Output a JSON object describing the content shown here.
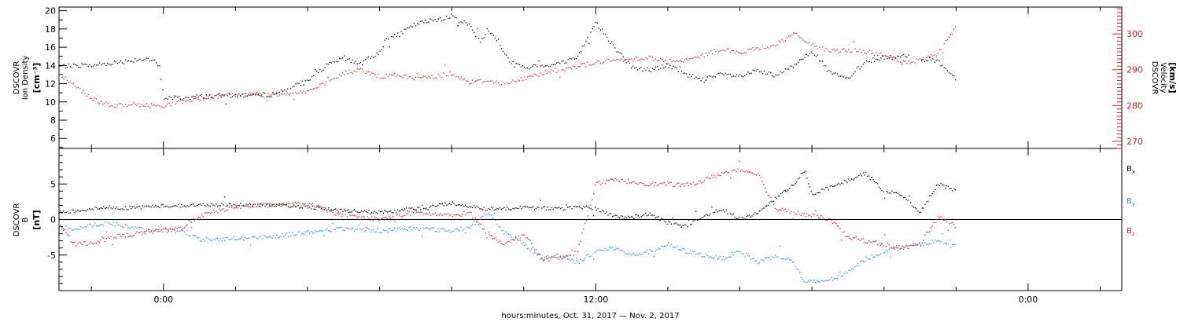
{
  "colors": {
    "black": "#000000",
    "blue": "#1f8fdf",
    "red": "#e02020"
  },
  "x_axis": {
    "title": "hours:minutes, Oct. 31, 2017 — Nov.  2, 2017",
    "tick_labels": [
      "0:00",
      "12:00",
      "0:00"
    ],
    "tick_hours": [
      0,
      12,
      24
    ],
    "range_hours": [
      -2.9,
      26.6
    ]
  },
  "panels": {
    "top": {
      "left_axis": {
        "title_lines": [
          "DSCOVR",
          "Ion Density"
        ],
        "units": "[cm⁻³]",
        "ticks": [
          6,
          8,
          10,
          12,
          14,
          16,
          18,
          20
        ],
        "range": [
          4.9,
          20.4
        ]
      },
      "right_axis": {
        "title_lines": [
          "DSCOVR",
          "Velocity"
        ],
        "units": "[km/s]",
        "ticks": [
          270,
          280,
          290,
          300
        ],
        "range": [
          268,
          307.5
        ]
      }
    },
    "bottom": {
      "left_axis": {
        "title_lines": [
          "DSCOVR",
          "B"
        ],
        "units": "[nT]",
        "ticks": [
          -5,
          0,
          5
        ],
        "range": [
          -10,
          10
        ]
      },
      "legend": [
        {
          "label": "B",
          "sub": "x",
          "color": "#000000"
        },
        {
          "label": "B",
          "sub": "y",
          "color": "#1f8fdf"
        },
        {
          "label": "B",
          "sub": "z",
          "color": "#e02020"
        }
      ]
    }
  },
  "chart_data": [
    {
      "type": "scatter",
      "title": "",
      "xlabel": "hours:minutes, Oct. 31, 2017 — Nov.  2, 2017",
      "ylabel": "DSCOVR Ion Density [cm⁻³]",
      "y2label": "DSCOVR Velocity [km/s]",
      "xlim": [
        -2.9,
        26.6
      ],
      "ylim": [
        4.9,
        20.4
      ],
      "y2lim": [
        268,
        307.5
      ],
      "series": [
        {
          "name": "",
          "axis": "left",
          "color": "#000000",
          "x": [
            -2.9,
            -2.0,
            -1.0,
            -0.5,
            -0.2,
            -0.1,
            0.0,
            0.5,
            1.0,
            2.0,
            3.0,
            3.5,
            4.0,
            4.5,
            5.0,
            5.5,
            6.0,
            6.2,
            6.5,
            7.0,
            7.5,
            8.0,
            8.5,
            8.8,
            9.0,
            9.3,
            9.6,
            10.0,
            10.5,
            11.0,
            11.5,
            12.0,
            12.5,
            13.0,
            13.5,
            14.0,
            14.5,
            15.0,
            15.5,
            16.0,
            16.5,
            17.0,
            17.5,
            18.0,
            18.5,
            19.0,
            19.5,
            20.0,
            20.5,
            21.0,
            21.5,
            22.0
          ],
          "y": [
            13.9,
            14.0,
            14.5,
            14.8,
            14.3,
            13.7,
            10.5,
            10.4,
            10.6,
            10.7,
            10.8,
            11.5,
            12.3,
            13.9,
            14.8,
            14.2,
            15.5,
            17.0,
            17.3,
            18.5,
            19.0,
            19.4,
            18.4,
            16.6,
            18.0,
            16.5,
            14.5,
            13.7,
            14.0,
            14.2,
            15.0,
            18.7,
            16.1,
            13.8,
            13.5,
            14.0,
            13.0,
            12.5,
            13.0,
            12.8,
            13.4,
            12.8,
            14.0,
            15.7,
            13.2,
            12.5,
            14.5,
            14.8,
            15.0,
            14.7,
            14.5,
            12.5
          ]
        },
        {
          "name": "",
          "axis": "right",
          "color": "#e02020",
          "x": [
            -2.9,
            -2.5,
            -2.0,
            -1.5,
            -1.0,
            -0.5,
            0.0,
            0.5,
            1.0,
            2.0,
            3.0,
            3.5,
            4.0,
            4.5,
            5.0,
            5.5,
            6.0,
            6.5,
            7.0,
            7.5,
            8.0,
            8.5,
            9.0,
            9.5,
            10.0,
            10.5,
            11.0,
            11.5,
            12.0,
            12.5,
            13.0,
            13.5,
            14.0,
            14.5,
            15.0,
            15.5,
            16.0,
            16.5,
            17.0,
            17.5,
            18.0,
            18.5,
            19.0,
            19.5,
            20.0,
            20.5,
            21.0,
            21.5,
            22.0
          ],
          "y": [
            289,
            286,
            282,
            280,
            280,
            280,
            280,
            281,
            282,
            283,
            283,
            283.5,
            284,
            286,
            289,
            290,
            288,
            288.5,
            287.5,
            288,
            289,
            286.5,
            287,
            286,
            287.5,
            289,
            290,
            291,
            292,
            292.5,
            293,
            293.5,
            292,
            292.5,
            294,
            296,
            294.5,
            296,
            297,
            300,
            297,
            295,
            295.5,
            295,
            294,
            292,
            292.5,
            294.5,
            302
          ]
        }
      ]
    },
    {
      "type": "scatter",
      "title": "",
      "xlabel": "hours:minutes, Oct. 31, 2017 — Nov.  2, 2017",
      "ylabel": "DSCOVR B [nT]",
      "xlim": [
        -2.9,
        26.6
      ],
      "ylim": [
        -10,
        10
      ],
      "series": [
        {
          "name": "Bx",
          "color": "#000000",
          "x": [
            -2.9,
            -2.5,
            -2.0,
            -1.5,
            -1.0,
            -0.5,
            0.0,
            1.0,
            2.0,
            3.0,
            4.0,
            5.0,
            6.0,
            7.0,
            8.0,
            9.0,
            10.0,
            11.0,
            11.8,
            12.5,
            13.0,
            13.5,
            14.0,
            14.5,
            15.0,
            15.5,
            16.0,
            16.5,
            17.0,
            17.5,
            17.8,
            18.0,
            18.5,
            19.0,
            19.5,
            20.0,
            20.5,
            21.0,
            21.5,
            22.0
          ],
          "y": [
            1.0,
            1.2,
            1.5,
            1.7,
            1.6,
            1.8,
            1.9,
            2.0,
            2.1,
            2.0,
            1.8,
            1.2,
            1.0,
            1.5,
            2.3,
            1.5,
            1.7,
            1.5,
            1.8,
            0.5,
            0.3,
            0.8,
            -0.5,
            -1.0,
            0.5,
            1.5,
            0.0,
            1.0,
            3.0,
            5.0,
            7.0,
            3.5,
            4.5,
            5.5,
            6.5,
            4.0,
            3.5,
            1.0,
            5.0,
            4.0
          ]
        },
        {
          "name": "By",
          "color": "#1f8fdf",
          "x": [
            -2.9,
            -2.5,
            -2.0,
            -1.5,
            -1.0,
            -0.5,
            0.0,
            0.5,
            1.0,
            2.0,
            3.0,
            4.0,
            5.0,
            6.0,
            7.0,
            8.0,
            8.5,
            9.0,
            9.5,
            10.0,
            10.5,
            11.0,
            11.5,
            12.0,
            12.5,
            13.0,
            13.5,
            14.0,
            14.5,
            15.0,
            15.5,
            16.0,
            16.5,
            17.0,
            17.5,
            17.8,
            18.0,
            18.5,
            19.0,
            19.5,
            20.0,
            20.5,
            21.0,
            21.5,
            22.0
          ],
          "y": [
            -1.0,
            -1.3,
            -0.8,
            -0.5,
            -1.0,
            -1.5,
            -1.5,
            -1.6,
            -2.8,
            -2.7,
            -2.4,
            -1.8,
            -1.3,
            -1.6,
            -1.2,
            -1.6,
            -1.0,
            1.0,
            -2.0,
            -3.5,
            -5.5,
            -5.0,
            -6.0,
            -4.5,
            -4.0,
            -5.0,
            -4.5,
            -3.5,
            -4.5,
            -5.0,
            -5.5,
            -4.5,
            -6.0,
            -5.0,
            -6.0,
            -9.0,
            -8.8,
            -8.5,
            -7.5,
            -5.5,
            -4.5,
            -4.0,
            -3.5,
            -3.0,
            -3.5
          ]
        },
        {
          "name": "Bz",
          "color": "#e02020",
          "x": [
            -2.9,
            -2.5,
            -2.0,
            -1.5,
            -1.0,
            -0.5,
            0.0,
            0.5,
            1.0,
            2.0,
            3.0,
            4.0,
            5.0,
            6.0,
            7.0,
            8.0,
            8.5,
            9.0,
            9.5,
            10.0,
            10.5,
            11.0,
            11.5,
            12.0,
            12.5,
            13.0,
            13.5,
            14.0,
            14.5,
            15.0,
            15.5,
            16.0,
            16.5,
            17.0,
            17.5,
            18.0,
            18.5,
            19.0,
            19.5,
            20.0,
            20.5,
            21.0,
            21.5,
            22.0
          ],
          "y": [
            -0.5,
            -3.5,
            -3.3,
            -2.5,
            -2.2,
            -1.8,
            -1.5,
            -1.2,
            0.5,
            1.8,
            2.0,
            2.2,
            0.5,
            0.0,
            1.0,
            0.5,
            1.0,
            -2.0,
            -3.5,
            -2.0,
            -5.5,
            -5.5,
            -4.5,
            5.0,
            5.5,
            5.3,
            5.0,
            5.0,
            4.8,
            5.5,
            6.5,
            7.0,
            6.5,
            1.5,
            1.0,
            0.5,
            0.0,
            -2.5,
            -3.0,
            -3.5,
            -4.0,
            -3.5,
            0.5,
            -1.0
          ]
        }
      ]
    }
  ]
}
